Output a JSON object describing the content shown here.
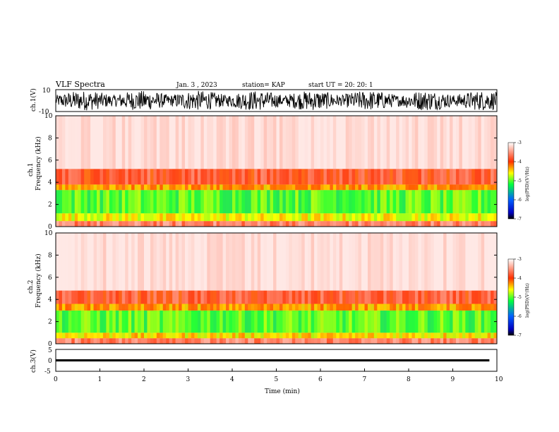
{
  "header": {
    "title": "VLF Spectra",
    "date": "Jan. 3 , 2023",
    "station": "station= KAP",
    "start": "start UT =  20: 20: 1"
  },
  "chart_data": [
    {
      "type": "line",
      "name_label": "ch.1(V)",
      "ylabel": "ch.1(V)",
      "ylim": [
        -10,
        10
      ],
      "yticks": [
        "10",
        "-10"
      ],
      "x_range": [
        0,
        10
      ],
      "description_visible": "dense noisy waveform spanning nearly full range",
      "envelope": {
        "min": -9,
        "max": 9
      },
      "xlabel": ""
    },
    {
      "type": "heatmap",
      "ylabel": "ch.1\nFrequency (kHz)",
      "ylabel_lines": [
        "ch.1",
        "Frequency (kHz)"
      ],
      "ylim": [
        0,
        10
      ],
      "yticks": [
        "0",
        "2",
        "4",
        "6",
        "8",
        "10"
      ],
      "xlim": [
        0,
        10
      ],
      "colorbar": {
        "label": "log(PSD)(V²/Hz)",
        "ticks": [
          "-3",
          "-4",
          "-5",
          "-6",
          "-7"
        ],
        "range": [
          -7,
          -3
        ]
      },
      "bands_kHz": [
        {
          "from": 0.0,
          "to": 0.5,
          "level": -3.6
        },
        {
          "from": 0.5,
          "to": 1.2,
          "level": -4.6
        },
        {
          "from": 1.2,
          "to": 3.3,
          "level": -5.0
        },
        {
          "from": 3.3,
          "to": 3.8,
          "level": -4.3
        },
        {
          "from": 3.8,
          "to": 5.2,
          "level": -3.8
        },
        {
          "from": 5.2,
          "to": 10.0,
          "level": -3.2
        }
      ]
    },
    {
      "type": "heatmap",
      "ylabel": "ch.2\nFrequency (kHz)",
      "ylabel_lines": [
        "ch.2",
        "Frequency (kHz)"
      ],
      "ylim": [
        0,
        10
      ],
      "yticks": [
        "0",
        "2",
        "4",
        "6",
        "8",
        "10"
      ],
      "xlim": [
        0,
        10
      ],
      "colorbar": {
        "label": "log(PSD)(V²/Hz)",
        "ticks": [
          "-3",
          "-4",
          "-5",
          "-6",
          "-7"
        ],
        "range": [
          -7,
          -3
        ]
      },
      "bands_kHz": [
        {
          "from": 0.0,
          "to": 0.5,
          "level": -3.6
        },
        {
          "from": 0.5,
          "to": 1.0,
          "level": -4.5
        },
        {
          "from": 1.0,
          "to": 3.0,
          "level": -5.0
        },
        {
          "from": 3.0,
          "to": 3.6,
          "level": -4.3
        },
        {
          "from": 3.6,
          "to": 4.8,
          "level": -3.8
        },
        {
          "from": 4.8,
          "to": 10.0,
          "level": -3.2
        }
      ]
    },
    {
      "type": "line",
      "ylabel": "ch.3(V)",
      "ylim": [
        -5,
        5
      ],
      "yticks": [
        "5",
        "0",
        "-5"
      ],
      "xlim": [
        0,
        10
      ],
      "xticks": [
        "0",
        "1",
        "2",
        "3",
        "4",
        "5",
        "6",
        "7",
        "8",
        "9",
        "10"
      ],
      "xlabel": "Time (min)",
      "envelope": {
        "min": -0.5,
        "max": 0.5
      }
    }
  ]
}
